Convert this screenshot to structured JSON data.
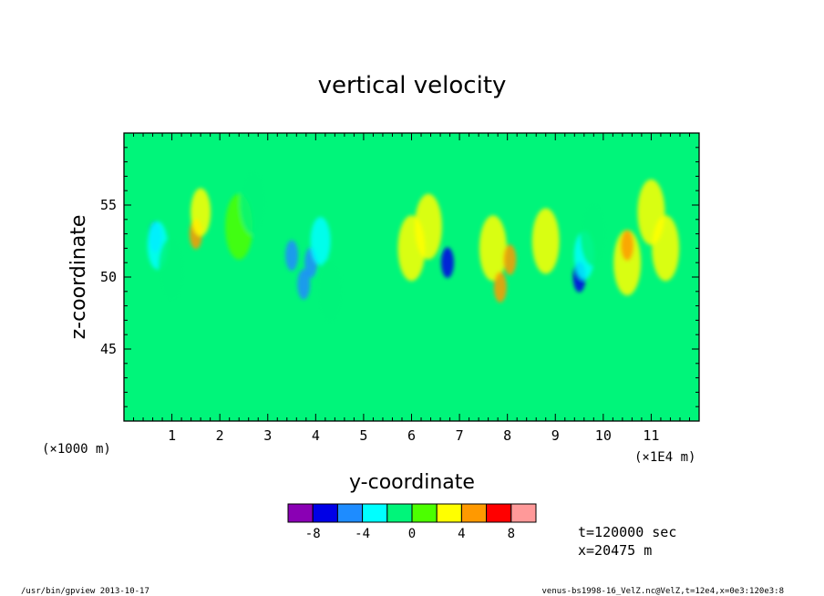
{
  "chart_data": {
    "type": "heatmap",
    "title": "vertical velocity",
    "xlabel": "y-coordinate",
    "ylabel": "z-coordinate",
    "x_unit_left": "(×1000 m)",
    "x_unit_right": "(×1E4 m)",
    "xlim": [
      0,
      120000
    ],
    "ylim": [
      40000,
      60000
    ],
    "x_ticks": [
      1,
      2,
      3,
      4,
      5,
      6,
      7,
      8,
      9,
      10,
      11
    ],
    "y_ticks": [
      45,
      50,
      55
    ],
    "colorbar": {
      "colors": [
        "#8a00b4",
        "#0000e6",
        "#1e8cff",
        "#00ffff",
        "#00f57a",
        "#4cff00",
        "#ffff00",
        "#ff9900",
        "#ff0000",
        "#ff9999"
      ],
      "tick_labels": [
        "-8",
        "-4",
        "0",
        "4",
        "8"
      ]
    },
    "features": [
      {
        "y": 0.65,
        "z": 52.8,
        "v": -6
      },
      {
        "y": 0.7,
        "z": 52.2,
        "v": -4
      },
      {
        "y": 1.0,
        "z": 50.5,
        "v": -2
      },
      {
        "y": 1.5,
        "z": 53.0,
        "v": 5
      },
      {
        "y": 1.6,
        "z": 54.5,
        "v": 3
      },
      {
        "y": 2.4,
        "z": 53.5,
        "v": 1.5
      },
      {
        "y": 2.7,
        "z": 55.2,
        "v": -2
      },
      {
        "y": 3.5,
        "z": 51.5,
        "v": -5
      },
      {
        "y": 3.75,
        "z": 49.5,
        "v": -6
      },
      {
        "y": 3.9,
        "z": 51.0,
        "v": -6
      },
      {
        "y": 4.1,
        "z": 52.5,
        "v": -3
      },
      {
        "y": 4.3,
        "z": 49.0,
        "v": -2
      },
      {
        "y": 6.0,
        "z": 52.0,
        "v": 2.5
      },
      {
        "y": 6.35,
        "z": 53.5,
        "v": 2
      },
      {
        "y": 6.75,
        "z": 51.0,
        "v": -7
      },
      {
        "y": 7.7,
        "z": 52.0,
        "v": 2.5
      },
      {
        "y": 7.85,
        "z": 49.3,
        "v": 5
      },
      {
        "y": 8.05,
        "z": 51.2,
        "v": 5
      },
      {
        "y": 8.8,
        "z": 52.5,
        "v": 2
      },
      {
        "y": 9.5,
        "z": 50.0,
        "v": -8
      },
      {
        "y": 9.6,
        "z": 51.5,
        "v": -4
      },
      {
        "y": 9.8,
        "z": 53.0,
        "v": -2
      },
      {
        "y": 10.5,
        "z": 51.0,
        "v": 2
      },
      {
        "y": 10.5,
        "z": 52.2,
        "v": 5
      },
      {
        "y": 11.3,
        "z": 52.0,
        "v": 2
      },
      {
        "y": 11.0,
        "z": 54.5,
        "v": 2
      }
    ]
  },
  "info": {
    "time": "t=120000 sec",
    "xpos": "x=20475 m"
  },
  "footer": {
    "left": "/usr/bin/gpview  2013-10-17",
    "right": "venus-bs1998-16_VelZ.nc@VelZ,t=12e4,x=0e3:120e3:8"
  }
}
